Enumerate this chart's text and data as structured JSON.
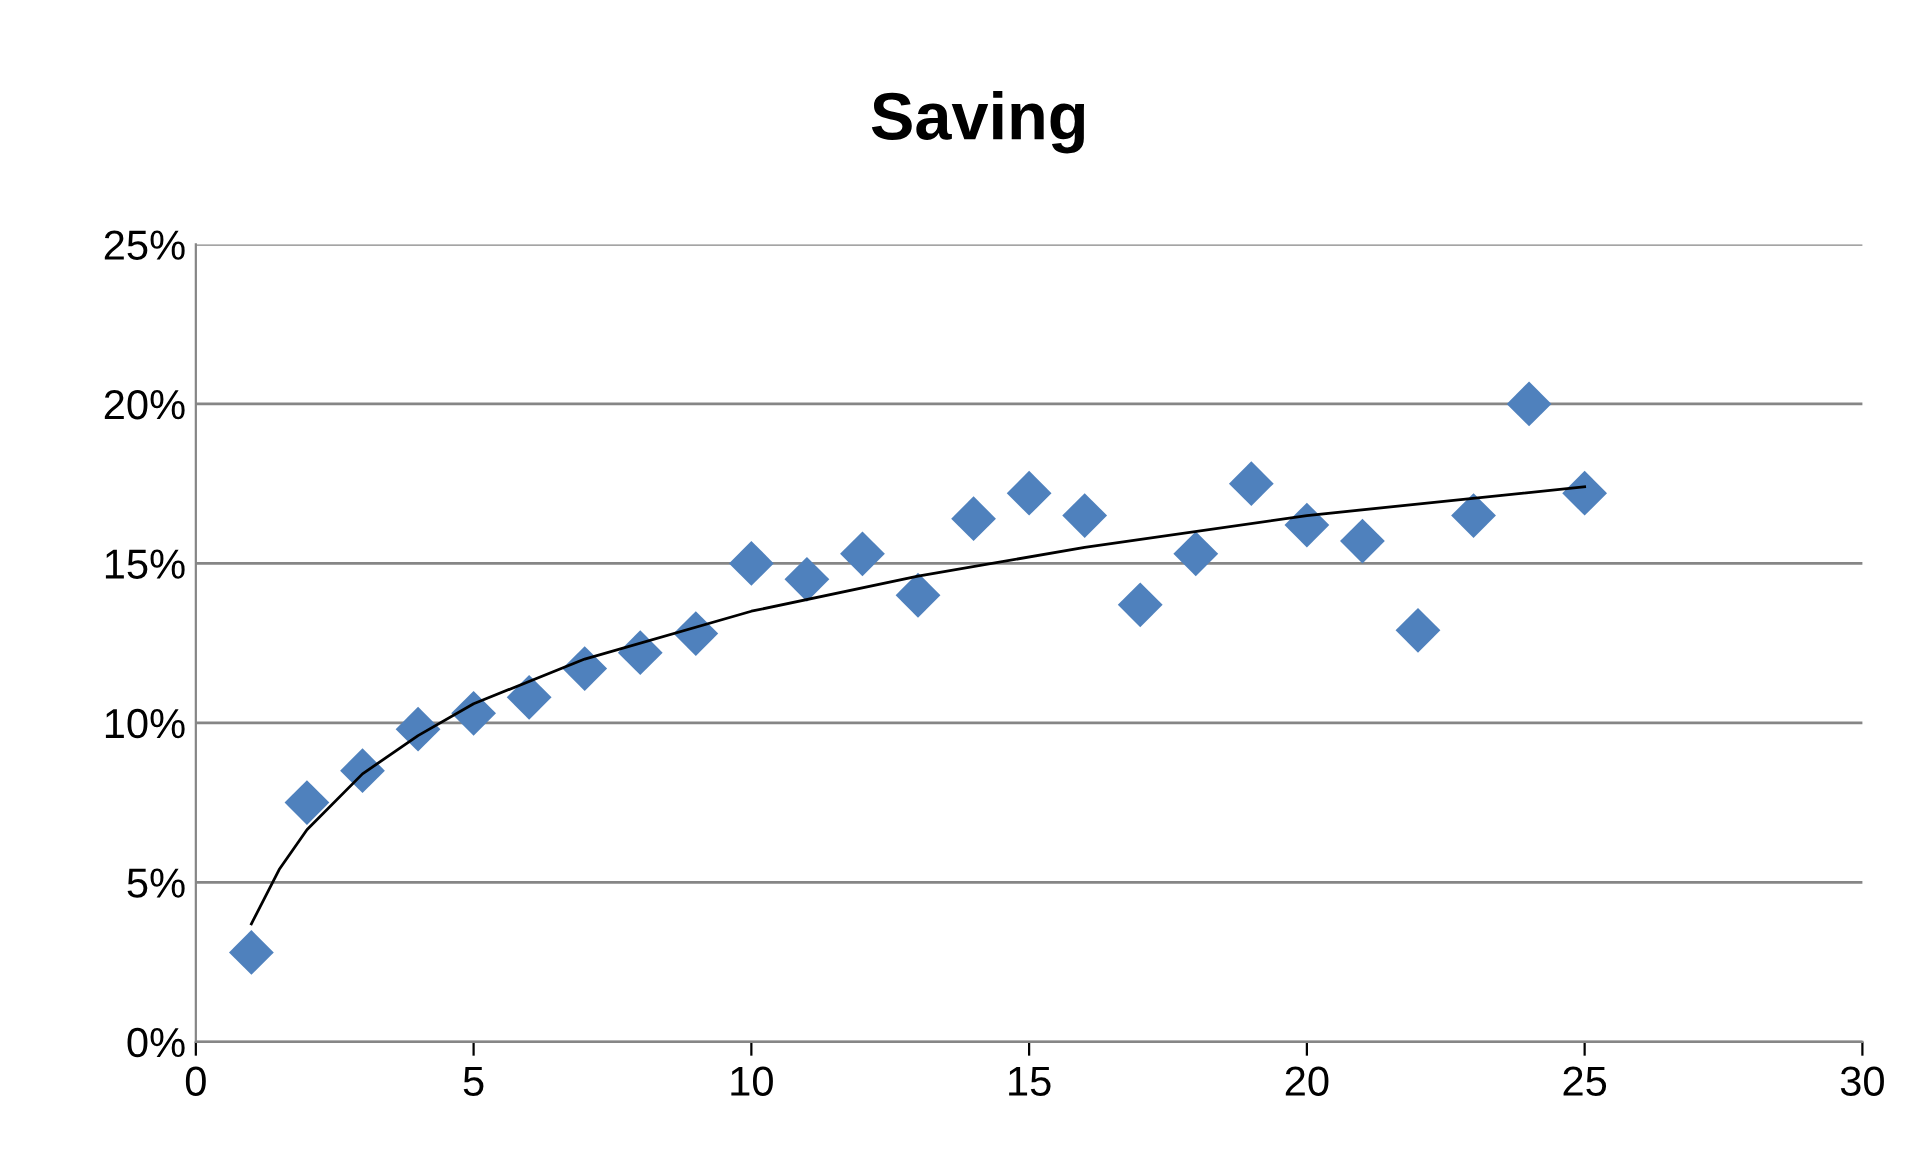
{
  "chart_data": {
    "type": "scatter",
    "title": "Saving",
    "grid": "y",
    "legend": false,
    "xlim": [
      0,
      30
    ],
    "xticks": [
      0,
      5,
      10,
      15,
      20,
      25,
      30
    ],
    "ylim": [
      0,
      25
    ],
    "yticks": [
      {
        "value": 0,
        "label": "0%"
      },
      {
        "value": 5,
        "label": "5%"
      },
      {
        "value": 10,
        "label": "10%"
      },
      {
        "value": 15,
        "label": "15%"
      },
      {
        "value": 20,
        "label": "20%"
      },
      {
        "value": 25,
        "label": "25%"
      }
    ],
    "series": [
      {
        "color": "#4f81bd",
        "marker": "diamond",
        "x": [
          1,
          2,
          3,
          4,
          5,
          6,
          7,
          8,
          9,
          10,
          11,
          12,
          13,
          14,
          15,
          16,
          17,
          18,
          19,
          20,
          21,
          22,
          23,
          24,
          25
        ],
        "values": [
          2.8,
          7.5,
          8.5,
          9.8,
          10.3,
          10.8,
          11.7,
          12.2,
          12.8,
          15.0,
          14.5,
          15.3,
          14.0,
          16.4,
          17.2,
          16.5,
          13.7,
          15.3,
          17.5,
          16.2,
          15.7,
          12.9,
          16.5,
          20.0,
          17.2
        ]
      },
      {
        "type": "line",
        "color": "#000000",
        "marker": "none",
        "line_style": "solid",
        "x": [
          1,
          1.5,
          2,
          3,
          4,
          5,
          7,
          10,
          13,
          16,
          20,
          25
        ],
        "values": [
          3.7,
          5.4,
          6.65,
          8.4,
          9.6,
          10.6,
          12.0,
          13.5,
          14.6,
          15.5,
          16.5,
          17.4
        ]
      }
    ]
  }
}
